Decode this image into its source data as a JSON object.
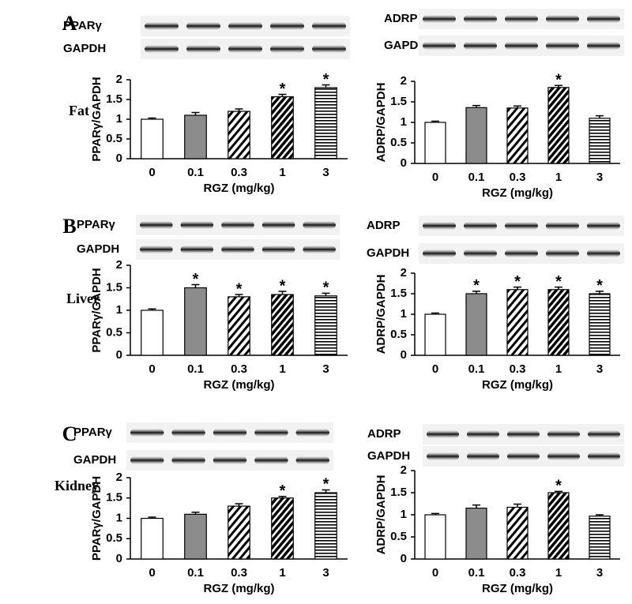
{
  "chart_data": [
    {
      "type": "bar",
      "panel": "A",
      "row_label": "Fat",
      "blot_labels": [
        "PPARγ",
        "GAPDH"
      ],
      "ylabel": "PPARγ/GAPDH",
      "xlabel": "RGZ (mg/kg)",
      "categories": [
        "0",
        "0.1",
        "0.3",
        "1",
        "3"
      ],
      "values": [
        1.0,
        1.1,
        1.2,
        1.57,
        1.8
      ],
      "errors": [
        0.03,
        0.07,
        0.06,
        0.06,
        0.07
      ],
      "significance": [
        null,
        null,
        null,
        "*",
        "*"
      ],
      "bar_fills": [
        "#ffffff",
        "#8c8c8c",
        "hatch-light",
        "hatch-dense",
        "stripes"
      ],
      "ylim": [
        0,
        2
      ],
      "yticks": [
        0,
        0.5,
        1,
        1.5,
        2
      ]
    },
    {
      "type": "bar",
      "blot_labels": [
        "ADRP",
        "GAPDH"
      ],
      "ylabel": "ADRP/GAPDH",
      "xlabel": "RGZ (mg/kg)",
      "categories": [
        "0",
        "0.1",
        "0.3",
        "1",
        "3"
      ],
      "values": [
        1.0,
        1.36,
        1.35,
        1.85,
        1.1
      ],
      "errors": [
        0.03,
        0.05,
        0.05,
        0.05,
        0.06
      ],
      "significance": [
        null,
        null,
        null,
        "*",
        null
      ],
      "bar_fills": [
        "#ffffff",
        "#8c8c8c",
        "hatch-light",
        "hatch-dense",
        "stripes"
      ],
      "ylim": [
        0,
        2
      ],
      "yticks": [
        0,
        0.5,
        1,
        1.5,
        2
      ]
    },
    {
      "type": "bar",
      "panel": "B",
      "row_label": "Liver",
      "blot_labels": [
        "PPARγ",
        "GAPDH"
      ],
      "ylabel": "PPARγ/GAPDH",
      "xlabel": "RGZ (mg/kg)",
      "categories": [
        "0",
        "0.1",
        "0.3",
        "1",
        "3"
      ],
      "values": [
        1.0,
        1.5,
        1.3,
        1.35,
        1.32
      ],
      "errors": [
        0.03,
        0.07,
        0.05,
        0.07,
        0.06
      ],
      "significance": [
        null,
        "*",
        "*",
        "*",
        "*"
      ],
      "bar_fills": [
        "#ffffff",
        "#8c8c8c",
        "hatch-light",
        "hatch-dense",
        "stripes"
      ],
      "ylim": [
        0,
        2
      ],
      "yticks": [
        0,
        0.5,
        1,
        1.5,
        2
      ]
    },
    {
      "type": "bar",
      "blot_labels": [
        "ADRP",
        "GAPDH"
      ],
      "ylabel": "ADRP/GAPDH",
      "xlabel": "RGZ (mg/kg)",
      "categories": [
        "0",
        "0.1",
        "0.3",
        "1",
        "3"
      ],
      "values": [
        1.0,
        1.5,
        1.6,
        1.6,
        1.5
      ],
      "errors": [
        0.03,
        0.06,
        0.06,
        0.06,
        0.06
      ],
      "significance": [
        null,
        "*",
        "*",
        "*",
        "*"
      ],
      "bar_fills": [
        "#ffffff",
        "#8c8c8c",
        "hatch-light",
        "hatch-dense",
        "stripes"
      ],
      "ylim": [
        0,
        2
      ],
      "yticks": [
        0,
        0.5,
        1,
        1.5,
        2
      ]
    },
    {
      "type": "bar",
      "panel": "C",
      "row_label": "Kidney",
      "blot_labels": [
        "PPARγ",
        "GAPDH"
      ],
      "ylabel": "PPARγ/GAPDH",
      "xlabel": "RGZ (mg/kg)",
      "categories": [
        "0",
        "0.1",
        "0.3",
        "1",
        "3"
      ],
      "values": [
        1.0,
        1.1,
        1.3,
        1.5,
        1.63
      ],
      "errors": [
        0.03,
        0.05,
        0.06,
        0.04,
        0.07
      ],
      "significance": [
        null,
        null,
        null,
        "*",
        "*"
      ],
      "bar_fills": [
        "#ffffff",
        "#8c8c8c",
        "hatch-light",
        "hatch-dense",
        "stripes"
      ],
      "ylim": [
        0,
        2
      ],
      "yticks": [
        0,
        0.5,
        1,
        1.5,
        2
      ]
    },
    {
      "type": "bar",
      "blot_labels": [
        "ADRP",
        "GAPDH"
      ],
      "ylabel": "ADRP/GAPDH",
      "xlabel": "RGZ (mg/kg)",
      "categories": [
        "0",
        "0.1",
        "0.3",
        "1",
        "3"
      ],
      "values": [
        1.0,
        1.15,
        1.17,
        1.5,
        0.97
      ],
      "errors": [
        0.03,
        0.07,
        0.07,
        0.03,
        0.03
      ],
      "significance": [
        null,
        null,
        null,
        "*",
        null
      ],
      "bar_fills": [
        "#ffffff",
        "#8c8c8c",
        "hatch-light",
        "hatch-dense",
        "stripes"
      ],
      "ylim": [
        0,
        2
      ],
      "yticks": [
        0,
        0.5,
        1,
        1.5,
        2
      ]
    }
  ]
}
